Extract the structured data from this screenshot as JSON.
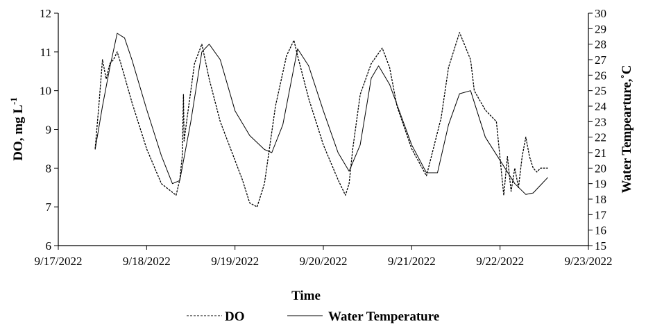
{
  "chart_data": {
    "type": "line",
    "xlabel": "Time",
    "ylabel_left": "DO,  mg L",
    "ylabel_left_sup": "-1",
    "ylabel_right": "Water Tempearture,˚C",
    "x_ticks": [
      "9/17/2022",
      "9/18/2022",
      "9/19/2022",
      "9/20/2022",
      "9/21/2022",
      "9/22/2022",
      "9/23/2022"
    ],
    "xlim": [
      "9/17/2022",
      "9/23/2022"
    ],
    "ylim_left": [
      6,
      12
    ],
    "ylim_right": [
      15,
      30
    ],
    "y_ticks_left": [
      "6",
      "7",
      "8",
      "9",
      "10",
      "11",
      "12"
    ],
    "y_ticks_right": [
      "15",
      "16",
      "17",
      "18",
      "19",
      "20",
      "21",
      "22",
      "23",
      "24",
      "25",
      "26",
      "27",
      "28",
      "29",
      "30"
    ],
    "grid": false,
    "legend": "bottom",
    "series": [
      {
        "name": "DO",
        "axis": "left",
        "style": "dashed",
        "x": [
          "9/17/2022 10:00",
          "9/17/2022 11:00",
          "9/17/2022 12:00",
          "9/17/2022 13:00",
          "9/17/2022 14:00",
          "9/17/2022 15:00",
          "9/17/2022 16:00",
          "9/17/2022 17:00",
          "9/17/2022 20:00",
          "9/18/2022 00:00",
          "9/18/2022 04:00",
          "9/18/2022 08:00",
          "9/18/2022 09:00",
          "9/18/2022 09:40",
          "9/18/2022 10:00",
          "9/18/2022 10:10",
          "9/18/2022 11:00",
          "9/18/2022 13:00",
          "9/18/2022 15:00",
          "9/18/2022 17:00",
          "9/18/2022 20:00",
          "9/19/2022 00:00",
          "9/19/2022 02:00",
          "9/19/2022 04:00",
          "9/19/2022 06:00",
          "9/19/2022 08:00",
          "9/19/2022 11:00",
          "9/19/2022 14:00",
          "9/19/2022 16:00",
          "9/19/2022 17:00",
          "9/19/2022 20:00",
          "9/20/2022 00:00",
          "9/20/2022 04:00",
          "9/20/2022 06:00",
          "9/20/2022 07:00",
          "9/20/2022 08:00",
          "9/20/2022 10:00",
          "9/20/2022 13:00",
          "9/20/2022 16:00",
          "9/20/2022 18:00",
          "9/20/2022 20:00",
          "9/21/2022 00:00",
          "9/21/2022 04:00",
          "9/21/2022 08:00",
          "9/21/2022 10:00",
          "9/21/2022 13:00",
          "9/21/2022 16:00",
          "9/21/2022 17:00",
          "9/21/2022 20:00",
          "9/21/2022 23:00",
          "9/22/2022 01:00",
          "9/22/2022 02:00",
          "9/22/2022 03:00",
          "9/22/2022 04:00",
          "9/22/2022 05:00",
          "9/22/2022 06:00",
          "9/22/2022 07:00",
          "9/22/2022 08:00",
          "9/22/2022 09:00",
          "9/22/2022 10:00",
          "9/22/2022 11:00",
          "9/22/2022 12:00",
          "9/22/2022 13:00"
        ],
        "y": [
          8.5,
          9.6,
          10.8,
          10.3,
          10.7,
          10.8,
          11.0,
          10.7,
          9.7,
          8.5,
          7.6,
          7.3,
          7.7,
          8.3,
          9.9,
          8.7,
          9.3,
          10.7,
          11.2,
          10.3,
          9.2,
          8.2,
          7.7,
          7.1,
          7.0,
          7.6,
          9.6,
          10.9,
          11.3,
          10.9,
          9.8,
          8.6,
          7.7,
          7.3,
          7.6,
          8.5,
          9.9,
          10.7,
          11.1,
          10.6,
          9.6,
          8.5,
          7.8,
          9.3,
          10.6,
          11.5,
          10.8,
          10.0,
          9.5,
          9.2,
          7.3,
          8.3,
          7.4,
          8.0,
          7.5,
          8.3,
          8.8,
          8.3,
          8.0,
          7.9,
          8.0,
          8.0,
          8.0
        ]
      },
      {
        "name": "Water Temperature",
        "axis": "right",
        "style": "solid",
        "x": [
          "9/17/2022 10:00",
          "9/17/2022 12:00",
          "9/17/2022 14:00",
          "9/17/2022 16:00",
          "9/17/2022 18:00",
          "9/17/2022 20:00",
          "9/18/2022 00:00",
          "9/18/2022 04:00",
          "9/18/2022 07:00",
          "9/18/2022 09:00",
          "9/18/2022 12:00",
          "9/18/2022 15:00",
          "9/18/2022 17:00",
          "9/18/2022 20:00",
          "9/19/2022 00:00",
          "9/19/2022 04:00",
          "9/19/2022 08:00",
          "9/19/2022 10:00",
          "9/19/2022 13:00",
          "9/19/2022 16:00",
          "9/19/2022 17:00",
          "9/19/2022 20:00",
          "9/20/2022 00:00",
          "9/20/2022 04:00",
          "9/20/2022 07:00",
          "9/20/2022 10:00",
          "9/20/2022 13:00",
          "9/20/2022 15:00",
          "9/20/2022 18:00",
          "9/21/2022 00:00",
          "9/21/2022 04:00",
          "9/21/2022 07:00",
          "9/21/2022 10:00",
          "9/21/2022 13:00",
          "9/21/2022 16:00",
          "9/21/2022 18:00",
          "9/21/2022 20:00",
          "9/22/2022 00:00",
          "9/22/2022 04:00",
          "9/22/2022 07:00",
          "9/22/2022 09:00",
          "9/22/2022 11:00",
          "9/22/2022 13:00"
        ],
        "y": [
          21.2,
          24.0,
          26.5,
          28.7,
          28.4,
          27.0,
          23.8,
          20.8,
          19.0,
          19.2,
          23.0,
          27.5,
          28.0,
          27.0,
          23.7,
          22.1,
          21.2,
          21.0,
          22.8,
          26.5,
          27.7,
          26.6,
          23.7,
          21.0,
          19.8,
          21.5,
          25.8,
          26.6,
          25.4,
          21.5,
          19.7,
          19.7,
          22.8,
          24.8,
          25.0,
          23.5,
          22.0,
          20.5,
          19.0,
          18.3,
          18.4,
          18.9,
          19.4
        ]
      }
    ]
  }
}
